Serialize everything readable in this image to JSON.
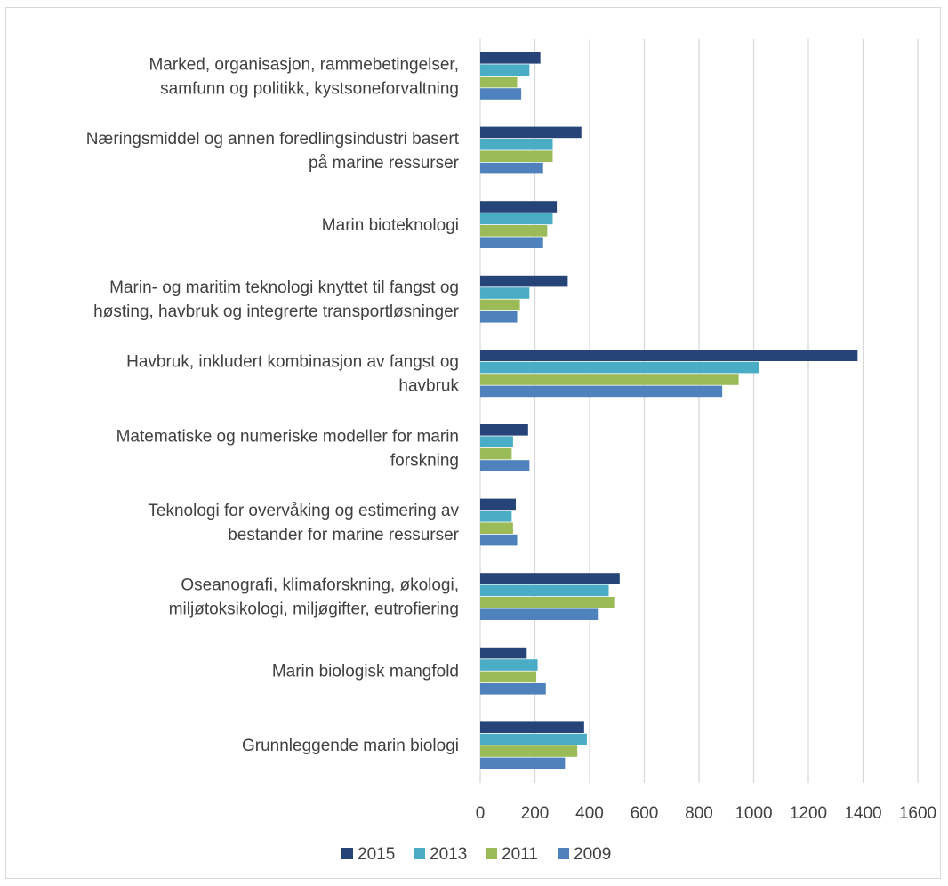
{
  "chart_data": {
    "type": "bar",
    "orientation": "horizontal",
    "categories": [
      [
        "Marked, organisasjon, rammebetingelser,",
        "samfunn og politikk, kystsoneforvaltning"
      ],
      [
        "Næringsmiddel og annen foredlingsindustri basert",
        "på marine ressurser"
      ],
      [
        "Marin bioteknologi"
      ],
      [
        "Marin- og maritim teknologi knyttet til fangst og",
        "høsting, havbruk og integrerte transportløsninger"
      ],
      [
        "Havbruk, inkludert kombinasjon av fangst og",
        "havbruk"
      ],
      [
        "Matematiske og numeriske modeller for marin",
        "forskning"
      ],
      [
        "Teknologi for overvåking og estimering av",
        "bestander for marine ressurser"
      ],
      [
        "Oseanografi, klimaforskning, økologi,",
        "miljøtoksikologi, miljøgifter, eutrofiering"
      ],
      [
        "Marin biologisk mangfold"
      ],
      [
        "Grunnleggende marin biologi"
      ]
    ],
    "series": [
      {
        "name": "2015",
        "color": "#264478",
        "values": [
          220,
          370,
          280,
          320,
          1380,
          175,
          130,
          510,
          170,
          380
        ]
      },
      {
        "name": "2013",
        "color": "#4bacc6",
        "values": [
          180,
          265,
          265,
          180,
          1020,
          120,
          115,
          470,
          210,
          390
        ]
      },
      {
        "name": "2011",
        "color": "#9bbb59",
        "values": [
          135,
          265,
          245,
          145,
          945,
          115,
          120,
          490,
          205,
          355
        ]
      },
      {
        "name": "2009",
        "color": "#4f81bd",
        "values": [
          150,
          230,
          230,
          135,
          885,
          180,
          135,
          430,
          240,
          310
        ]
      }
    ],
    "xlim": [
      0,
      1600
    ],
    "xticks": [
      0,
      200,
      400,
      600,
      800,
      1000,
      1200,
      1400,
      1600
    ],
    "title": "",
    "xlabel": "",
    "ylabel": "",
    "grid": "vertical",
    "legend_position": "bottom"
  }
}
